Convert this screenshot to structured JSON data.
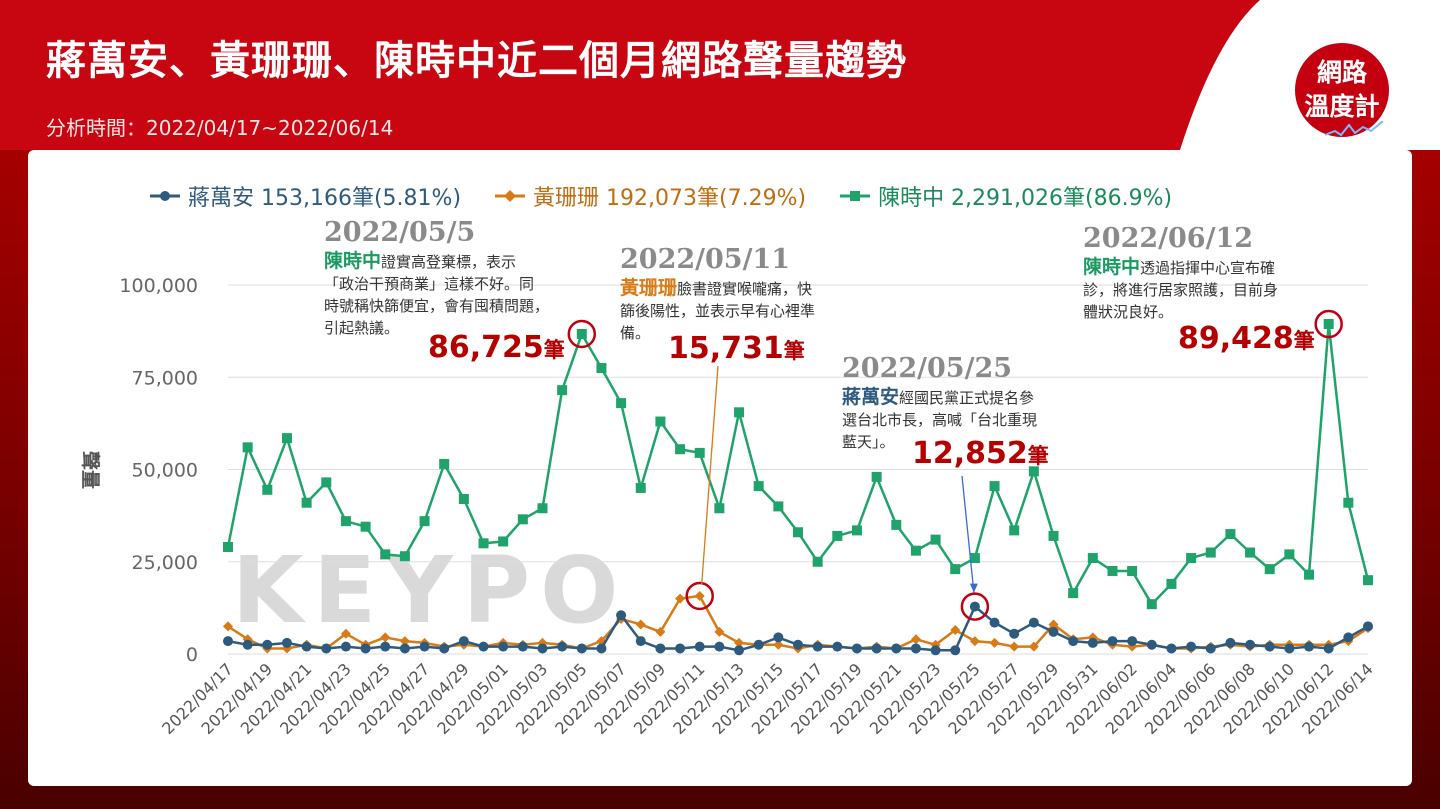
{
  "header": {
    "title": "蔣萬安、黃珊珊、陳時中近二個月網路聲量趨勢",
    "subtitle": "分析時間：2022/04/17~2022/06/14",
    "badge_line1": "網路",
    "badge_line2": "溫度計"
  },
  "legend": [
    {
      "label": "蔣萬安 153,166筆(5.81%)",
      "color": "#2e5a7e",
      "marker": "circle"
    },
    {
      "label": "黃珊珊 192,073筆(7.29%)",
      "color": "#d87a16",
      "marker": "diamond"
    },
    {
      "label": "陳時中 2,291,026筆(86.9%)",
      "color": "#1fa36b",
      "marker": "square"
    }
  ],
  "watermark": "KEYPO",
  "annotations": {
    "a1": {
      "date": "2022/05/5",
      "who": "陳時中",
      "text_lines": [
        "證實高登棄標，表示",
        "「政治干預商業」這樣不好。同",
        "時號稱快篩便宜，會有囤積問題，",
        "引起熱議。"
      ],
      "value": "86,725",
      "unit": "筆"
    },
    "a2": {
      "date": "2022/05/11",
      "who": "黃珊珊",
      "text_lines": [
        "臉書證實喉嚨痛，快",
        "篩後陽性，並表示早有心裡準",
        "備。"
      ],
      "value": "15,731",
      "unit": "筆"
    },
    "a3": {
      "date": "2022/05/25",
      "who": "蔣萬安",
      "text_lines": [
        "經國民黨正式提名參",
        "選台北市長，高喊「台北重現",
        "藍天」。"
      ],
      "value": "12,852",
      "unit": "筆"
    },
    "a4": {
      "date": "2022/06/12",
      "who": "陳時中",
      "text_lines": [
        "透過指揮中心宣布確",
        "診，將進行居家照護，目前身",
        "體狀況良好。"
      ],
      "value": "89,428",
      "unit": "筆"
    }
  },
  "chart_data": {
    "type": "line",
    "ylabel": "聲量",
    "ylim": [
      0,
      100000
    ],
    "yticks": [
      0,
      25000,
      50000,
      75000,
      100000
    ],
    "ytick_labels": [
      "0",
      "25,000",
      "50,000",
      "75,000",
      "100,000"
    ],
    "x": [
      "2022/04/17",
      "2022/04/18",
      "2022/04/19",
      "2022/04/20",
      "2022/04/21",
      "2022/04/22",
      "2022/04/23",
      "2022/04/24",
      "2022/04/25",
      "2022/04/26",
      "2022/04/27",
      "2022/04/28",
      "2022/04/29",
      "2022/04/30",
      "2022/05/01",
      "2022/05/02",
      "2022/05/03",
      "2022/05/04",
      "2022/05/05",
      "2022/05/06",
      "2022/05/07",
      "2022/05/08",
      "2022/05/09",
      "2022/05/10",
      "2022/05/11",
      "2022/05/12",
      "2022/05/13",
      "2022/05/14",
      "2022/05/15",
      "2022/05/16",
      "2022/05/17",
      "2022/05/18",
      "2022/05/19",
      "2022/05/20",
      "2022/05/21",
      "2022/05/22",
      "2022/05/23",
      "2022/05/24",
      "2022/05/25",
      "2022/05/26",
      "2022/05/27",
      "2022/05/28",
      "2022/05/29",
      "2022/05/30",
      "2022/05/31",
      "2022/06/01",
      "2022/06/02",
      "2022/06/03",
      "2022/06/04",
      "2022/06/05",
      "2022/06/06",
      "2022/06/07",
      "2022/06/08",
      "2022/06/09",
      "2022/06/10",
      "2022/06/11",
      "2022/06/12",
      "2022/06/13",
      "2022/06/14"
    ],
    "xtick_labels": [
      "2022/04/17",
      "2022/04/19",
      "2022/04/21",
      "2022/04/23",
      "2022/04/25",
      "2022/04/27",
      "2022/04/29",
      "2022/05/01",
      "2022/05/03",
      "2022/05/05",
      "2022/05/07",
      "2022/05/09",
      "2022/05/11",
      "2022/05/13",
      "2022/05/15",
      "2022/05/17",
      "2022/05/19",
      "2022/05/21",
      "2022/05/23",
      "2022/05/25",
      "2022/05/27",
      "2022/05/29",
      "2022/05/31",
      "2022/06/02",
      "2022/06/04",
      "2022/06/06",
      "2022/06/08",
      "2022/06/10",
      "2022/06/12",
      "2022/06/14"
    ],
    "series": [
      {
        "name": "陳時中",
        "color": "#1fa36b",
        "marker": "square",
        "values": [
          29000,
          56000,
          44500,
          58500,
          41000,
          46500,
          36000,
          34500,
          27000,
          26500,
          36000,
          51500,
          42000,
          30000,
          30500,
          36500,
          39500,
          71500,
          86725,
          77500,
          68000,
          45000,
          63000,
          55500,
          54500,
          39500,
          65500,
          45500,
          40000,
          33000,
          25000,
          32000,
          33500,
          48000,
          35000,
          28000,
          31000,
          23000,
          26000,
          45500,
          33500,
          49500,
          32000,
          16500,
          26000,
          22500,
          22500,
          13500,
          19000,
          26000,
          27500,
          32500,
          27500,
          23000,
          27000,
          21500,
          89428,
          41000,
          20000
        ]
      },
      {
        "name": "黃珊珊",
        "color": "#d87a16",
        "marker": "diamond",
        "values": [
          7500,
          4000,
          1500,
          1500,
          2500,
          1500,
          5500,
          2500,
          4500,
          3500,
          3000,
          2000,
          2500,
          2000,
          3000,
          2500,
          3000,
          2500,
          1500,
          3500,
          9500,
          8000,
          6000,
          15000,
          15731,
          6000,
          3000,
          2500,
          2500,
          1500,
          2500,
          2000,
          1500,
          2000,
          1500,
          4000,
          2500,
          6500,
          3500,
          3000,
          2000,
          2000,
          8000,
          4000,
          4500,
          2500,
          2000,
          2500,
          1500,
          1500,
          2000,
          2500,
          2000,
          2500,
          2500,
          2500,
          2500,
          3500,
          7000
        ]
      },
      {
        "name": "蔣萬安",
        "color": "#2e5a7e",
        "marker": "circle",
        "values": [
          3500,
          2500,
          2500,
          3000,
          2000,
          1500,
          2000,
          1500,
          2000,
          1500,
          2000,
          1500,
          3500,
          2000,
          2000,
          2000,
          1500,
          2000,
          1500,
          1500,
          10500,
          3500,
          1500,
          1500,
          2000,
          2000,
          1000,
          2500,
          4500,
          2500,
          2000,
          2000,
          1500,
          1500,
          1500,
          1500,
          1000,
          1000,
          12852,
          8500,
          5500,
          8500,
          6000,
          3500,
          3000,
          3500,
          3500,
          2500,
          1500,
          2000,
          1500,
          3000,
          2500,
          2000,
          1500,
          2000,
          1500,
          4500,
          7500
        ]
      }
    ]
  }
}
